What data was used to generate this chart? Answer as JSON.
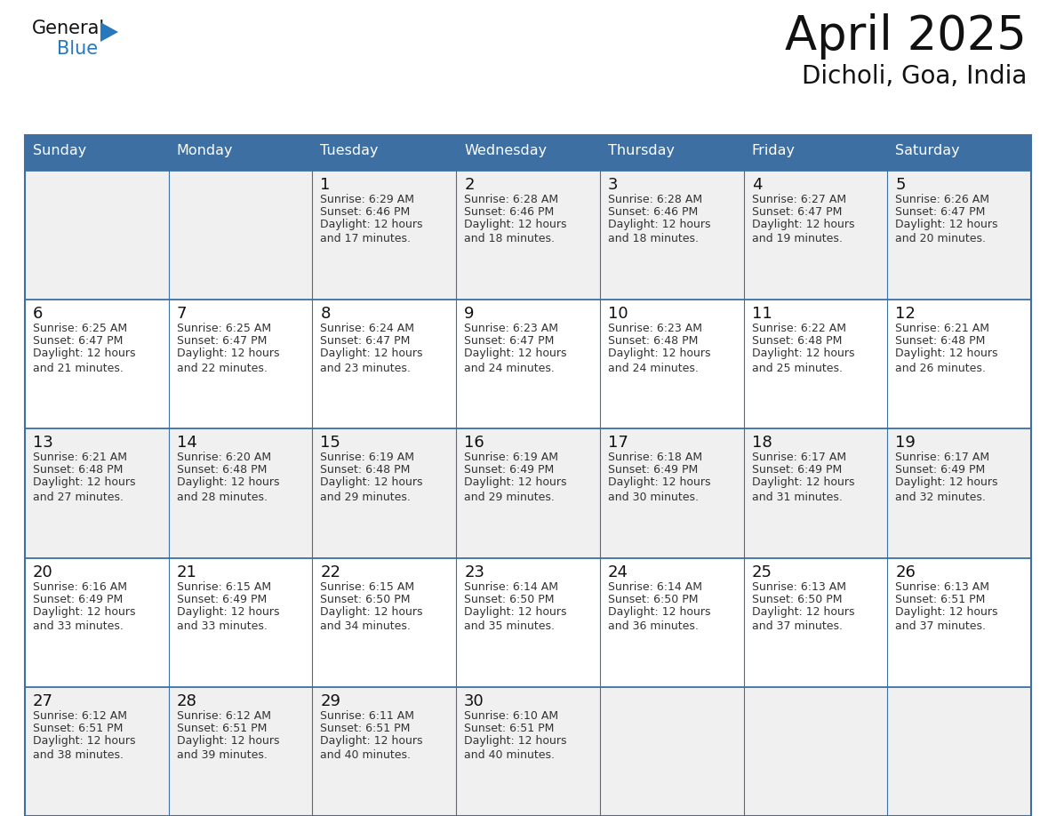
{
  "title": "April 2025",
  "subtitle": "Dicholi, Goa, India",
  "header_bg": "#3d6fa3",
  "header_text": "#ffffff",
  "day_names": [
    "Sunday",
    "Monday",
    "Tuesday",
    "Wednesday",
    "Thursday",
    "Friday",
    "Saturday"
  ],
  "row_bg_odd": "#f0f0f0",
  "row_bg_even": "#ffffff",
  "border_color": "#3d6fa3",
  "cell_text_color": "#333333",
  "date_color": "#111111",
  "calendar": [
    [
      {
        "date": "",
        "sunrise": "",
        "sunset": "",
        "daylight": ""
      },
      {
        "date": "",
        "sunrise": "",
        "sunset": "",
        "daylight": ""
      },
      {
        "date": "1",
        "sunrise": "6:29 AM",
        "sunset": "6:46 PM",
        "daylight": "12 hours\nand 17 minutes."
      },
      {
        "date": "2",
        "sunrise": "6:28 AM",
        "sunset": "6:46 PM",
        "daylight": "12 hours\nand 18 minutes."
      },
      {
        "date": "3",
        "sunrise": "6:28 AM",
        "sunset": "6:46 PM",
        "daylight": "12 hours\nand 18 minutes."
      },
      {
        "date": "4",
        "sunrise": "6:27 AM",
        "sunset": "6:47 PM",
        "daylight": "12 hours\nand 19 minutes."
      },
      {
        "date": "5",
        "sunrise": "6:26 AM",
        "sunset": "6:47 PM",
        "daylight": "12 hours\nand 20 minutes."
      }
    ],
    [
      {
        "date": "6",
        "sunrise": "6:25 AM",
        "sunset": "6:47 PM",
        "daylight": "12 hours\nand 21 minutes."
      },
      {
        "date": "7",
        "sunrise": "6:25 AM",
        "sunset": "6:47 PM",
        "daylight": "12 hours\nand 22 minutes."
      },
      {
        "date": "8",
        "sunrise": "6:24 AM",
        "sunset": "6:47 PM",
        "daylight": "12 hours\nand 23 minutes."
      },
      {
        "date": "9",
        "sunrise": "6:23 AM",
        "sunset": "6:47 PM",
        "daylight": "12 hours\nand 24 minutes."
      },
      {
        "date": "10",
        "sunrise": "6:23 AM",
        "sunset": "6:48 PM",
        "daylight": "12 hours\nand 24 minutes."
      },
      {
        "date": "11",
        "sunrise": "6:22 AM",
        "sunset": "6:48 PM",
        "daylight": "12 hours\nand 25 minutes."
      },
      {
        "date": "12",
        "sunrise": "6:21 AM",
        "sunset": "6:48 PM",
        "daylight": "12 hours\nand 26 minutes."
      }
    ],
    [
      {
        "date": "13",
        "sunrise": "6:21 AM",
        "sunset": "6:48 PM",
        "daylight": "12 hours\nand 27 minutes."
      },
      {
        "date": "14",
        "sunrise": "6:20 AM",
        "sunset": "6:48 PM",
        "daylight": "12 hours\nand 28 minutes."
      },
      {
        "date": "15",
        "sunrise": "6:19 AM",
        "sunset": "6:48 PM",
        "daylight": "12 hours\nand 29 minutes."
      },
      {
        "date": "16",
        "sunrise": "6:19 AM",
        "sunset": "6:49 PM",
        "daylight": "12 hours\nand 29 minutes."
      },
      {
        "date": "17",
        "sunrise": "6:18 AM",
        "sunset": "6:49 PM",
        "daylight": "12 hours\nand 30 minutes."
      },
      {
        "date": "18",
        "sunrise": "6:17 AM",
        "sunset": "6:49 PM",
        "daylight": "12 hours\nand 31 minutes."
      },
      {
        "date": "19",
        "sunrise": "6:17 AM",
        "sunset": "6:49 PM",
        "daylight": "12 hours\nand 32 minutes."
      }
    ],
    [
      {
        "date": "20",
        "sunrise": "6:16 AM",
        "sunset": "6:49 PM",
        "daylight": "12 hours\nand 33 minutes."
      },
      {
        "date": "21",
        "sunrise": "6:15 AM",
        "sunset": "6:49 PM",
        "daylight": "12 hours\nand 33 minutes."
      },
      {
        "date": "22",
        "sunrise": "6:15 AM",
        "sunset": "6:50 PM",
        "daylight": "12 hours\nand 34 minutes."
      },
      {
        "date": "23",
        "sunrise": "6:14 AM",
        "sunset": "6:50 PM",
        "daylight": "12 hours\nand 35 minutes."
      },
      {
        "date": "24",
        "sunrise": "6:14 AM",
        "sunset": "6:50 PM",
        "daylight": "12 hours\nand 36 minutes."
      },
      {
        "date": "25",
        "sunrise": "6:13 AM",
        "sunset": "6:50 PM",
        "daylight": "12 hours\nand 37 minutes."
      },
      {
        "date": "26",
        "sunrise": "6:13 AM",
        "sunset": "6:51 PM",
        "daylight": "12 hours\nand 37 minutes."
      }
    ],
    [
      {
        "date": "27",
        "sunrise": "6:12 AM",
        "sunset": "6:51 PM",
        "daylight": "12 hours\nand 38 minutes."
      },
      {
        "date": "28",
        "sunrise": "6:12 AM",
        "sunset": "6:51 PM",
        "daylight": "12 hours\nand 39 minutes."
      },
      {
        "date": "29",
        "sunrise": "6:11 AM",
        "sunset": "6:51 PM",
        "daylight": "12 hours\nand 40 minutes."
      },
      {
        "date": "30",
        "sunrise": "6:10 AM",
        "sunset": "6:51 PM",
        "daylight": "12 hours\nand 40 minutes."
      },
      {
        "date": "",
        "sunrise": "",
        "sunset": "",
        "daylight": ""
      },
      {
        "date": "",
        "sunrise": "",
        "sunset": "",
        "daylight": ""
      },
      {
        "date": "",
        "sunrise": "",
        "sunset": "",
        "daylight": ""
      }
    ]
  ],
  "logo_general_color": "#111111",
  "logo_blue_color": "#2878be",
  "logo_triangle_color": "#2878be",
  "fig_width": 11.88,
  "fig_height": 9.18,
  "dpi": 100
}
